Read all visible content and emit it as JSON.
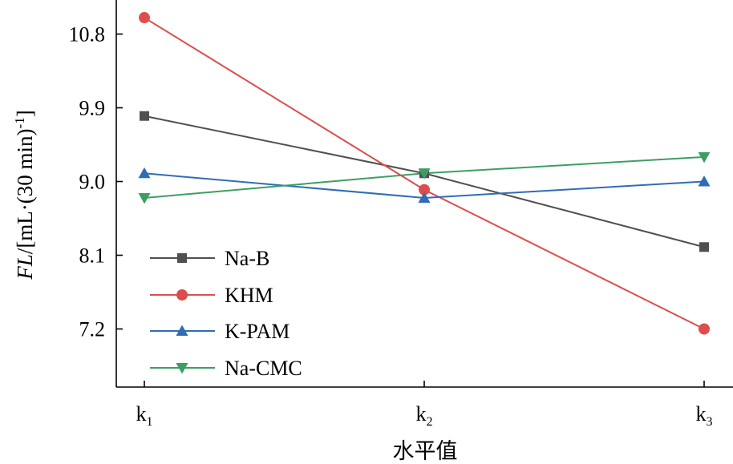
{
  "chart_data": {
    "type": "line",
    "categories": [
      "k1",
      "k2",
      "k3"
    ],
    "x_tick_labels": [
      {
        "base": "k",
        "sub": "1"
      },
      {
        "base": "k",
        "sub": "2"
      },
      {
        "base": "k",
        "sub": "3"
      }
    ],
    "xlabel": "水平值",
    "ylabel": {
      "italic": "FL",
      "rest": "/[mL·(30 min)",
      "sup": "-1",
      "close": "]"
    },
    "ylim": [
      6.5,
      11.3
    ],
    "yticks": [
      "7.2",
      "8.1",
      "9.0",
      "9.9",
      "10.8"
    ],
    "grid": false,
    "legend_position": "lower-left",
    "series": [
      {
        "name": "Na-B",
        "values": [
          9.8,
          9.1,
          8.2
        ],
        "color": "#505050",
        "marker": "square"
      },
      {
        "name": "KHM",
        "values": [
          11.0,
          8.9,
          7.2
        ],
        "color": "#de4d4d",
        "marker": "circle"
      },
      {
        "name": "K-PAM",
        "values": [
          9.1,
          8.8,
          9.0
        ],
        "color": "#2f6db5",
        "marker": "triangle-up"
      },
      {
        "name": "Na-CMC",
        "values": [
          8.8,
          9.1,
          9.3
        ],
        "color": "#3d9e64",
        "marker": "triangle-down"
      }
    ]
  }
}
